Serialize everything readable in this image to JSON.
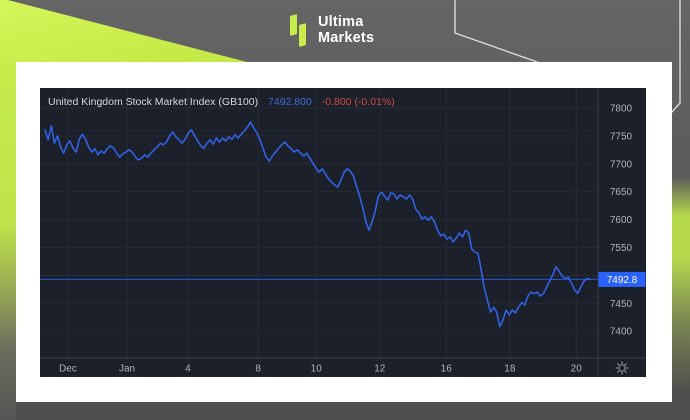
{
  "brand": {
    "line1": "Ultima",
    "line2": "Markets"
  },
  "colors": {
    "accent_lime": "#c7ec4b",
    "line_blue": "#2f62e6",
    "badge_blue": "#2961fd",
    "price_blue": "#4468d9",
    "change_red": "#d04a42",
    "panel_bg": "#1c202a"
  },
  "chart": {
    "title": "United Kingdom Stock Market Index (GB100)",
    "price": "7492.800",
    "change": "-0.800 (-0.01%)",
    "badge": "7492.8"
  },
  "chart_data": {
    "type": "line",
    "title": "United Kingdom Stock Market Index (GB100)",
    "instrument": "GB100",
    "last_price": 7492.8,
    "change": -0.8,
    "change_pct": -0.01,
    "grid": true,
    "legend_position": "none",
    "y_axis": {
      "ticks": [
        7800,
        7750,
        7700,
        7650,
        7600,
        7550,
        7500,
        7450,
        7400
      ],
      "visible_min": 7365,
      "visible_max": 7822
    },
    "x_axis": {
      "ticks": [
        {
          "label": "Dec",
          "pos": 0.05
        },
        {
          "label": "Jan",
          "pos": 0.156
        },
        {
          "label": "4",
          "pos": 0.265
        },
        {
          "label": "8",
          "pos": 0.391
        },
        {
          "label": "10",
          "pos": 0.495
        },
        {
          "label": "12",
          "pos": 0.609
        },
        {
          "label": "16",
          "pos": 0.728
        },
        {
          "label": "18",
          "pos": 0.842
        },
        {
          "label": "20",
          "pos": 0.961
        }
      ]
    },
    "current_price_line": 7492.8,
    "series": [
      {
        "name": "GB100",
        "color": "#2f62e6",
        "x_start": 0.009,
        "x_end": 0.986,
        "prices": [
          7761,
          7743,
          7768,
          7737,
          7750,
          7730,
          7719,
          7734,
          7741,
          7728,
          7721,
          7744,
          7753,
          7744,
          7730,
          7721,
          7727,
          7716,
          7723,
          7719,
          7727,
          7732,
          7728,
          7719,
          7712,
          7718,
          7721,
          7725,
          7721,
          7712,
          7707,
          7710,
          7716,
          7712,
          7719,
          7725,
          7730,
          7737,
          7734,
          7739,
          7750,
          7757,
          7748,
          7743,
          7737,
          7744,
          7755,
          7761,
          7750,
          7741,
          7732,
          7728,
          7737,
          7743,
          7735,
          7746,
          7739,
          7746,
          7741,
          7748,
          7744,
          7752,
          7746,
          7753,
          7759,
          7766,
          7775,
          7764,
          7755,
          7743,
          7727,
          7712,
          7705,
          7714,
          7721,
          7728,
          7734,
          7739,
          7732,
          7727,
          7721,
          7725,
          7719,
          7714,
          7719,
          7710,
          7701,
          7692,
          7685,
          7691,
          7682,
          7673,
          7667,
          7662,
          7658,
          7671,
          7685,
          7691,
          7687,
          7678,
          7660,
          7642,
          7621,
          7596,
          7581,
          7596,
          7615,
          7642,
          7649,
          7642,
          7635,
          7648,
          7646,
          7637,
          7644,
          7641,
          7637,
          7644,
          7637,
          7619,
          7612,
          7601,
          7605,
          7599,
          7605,
          7596,
          7581,
          7571,
          7574,
          7565,
          7569,
          7560,
          7567,
          7576,
          7569,
          7581,
          7576,
          7547,
          7542,
          7540,
          7510,
          7477,
          7456,
          7434,
          7443,
          7434,
          7408,
          7420,
          7438,
          7429,
          7438,
          7433,
          7443,
          7451,
          7447,
          7463,
          7470,
          7467,
          7470,
          7463,
          7468,
          7479,
          7490,
          7501,
          7515,
          7508,
          7499,
          7494,
          7497,
          7486,
          7474,
          7468,
          7479,
          7490,
          7495,
          7492.8
        ]
      }
    ]
  }
}
